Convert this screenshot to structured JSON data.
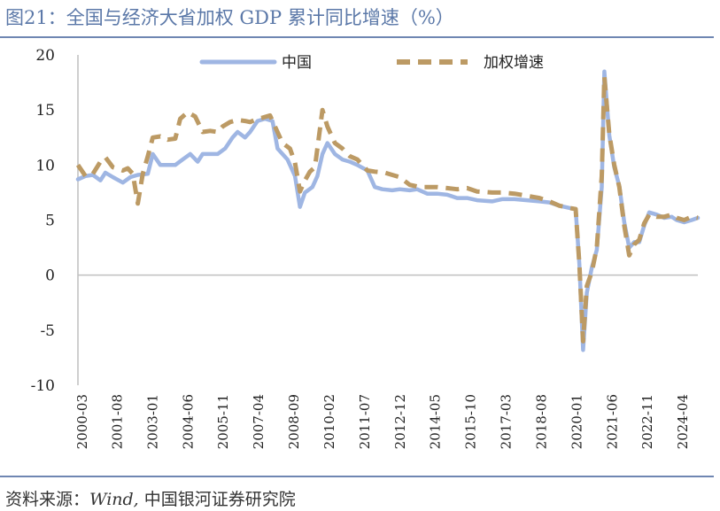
{
  "header": {
    "title": "图21：全国与经济大省加权 GDP 累计同比增速（%）"
  },
  "footer": {
    "source_prefix": "资料来源：",
    "source_wind": "Wind,",
    "source_org": "中国银河证券研究院"
  },
  "colors": {
    "china": "#9fb6e3",
    "weighted": "#bc9a64",
    "axis": "#bfbfbf",
    "title": "#5b78a8"
  },
  "chart_data": {
    "type": "line",
    "title": "全国与经济大省加权 GDP 累计同比增速（%）",
    "xlabel": "",
    "ylabel": "",
    "ylim": [
      -10,
      20
    ],
    "yticks": [
      20,
      15,
      10,
      5,
      0,
      -5,
      -10
    ],
    "ytick_labels": [
      "20",
      "15",
      "10",
      "5",
      "0",
      "-5",
      "-10"
    ],
    "x_tick_labels": [
      "2000-03",
      "2001-08",
      "2003-01",
      "2004-06",
      "2005-11",
      "2007-04",
      "2008-09",
      "2010-02",
      "2011-07",
      "2012-12",
      "2014-05",
      "2015-10",
      "2017-03",
      "2018-08",
      "2020-01",
      "2021-06",
      "2022-11",
      "2024-04"
    ],
    "x_tick_positions": [
      2000.17,
      2001.58,
      2003.0,
      2004.42,
      2005.83,
      2007.25,
      2008.67,
      2010.08,
      2011.5,
      2012.92,
      2014.33,
      2015.75,
      2017.17,
      2018.58,
      2020.0,
      2021.42,
      2022.83,
      2024.25
    ],
    "x_range": [
      2000.0,
      2024.85
    ],
    "legend": [
      "中国",
      "加权增速"
    ],
    "legend_position": "top",
    "series": [
      {
        "name": "中国",
        "style": "solid",
        "points": [
          [
            2000.0,
            8.7
          ],
          [
            2000.3,
            9.0
          ],
          [
            2000.6,
            9.1
          ],
          [
            2000.9,
            8.6
          ],
          [
            2001.1,
            9.3
          ],
          [
            2001.4,
            8.9
          ],
          [
            2001.8,
            8.4
          ],
          [
            2002.1,
            8.9
          ],
          [
            2002.4,
            9.1
          ],
          [
            2002.8,
            9.2
          ],
          [
            2003.0,
            11.0
          ],
          [
            2003.3,
            10.0
          ],
          [
            2003.6,
            10.0
          ],
          [
            2003.9,
            10.0
          ],
          [
            2004.2,
            10.5
          ],
          [
            2004.5,
            11.0
          ],
          [
            2004.8,
            10.3
          ],
          [
            2005.0,
            11.0
          ],
          [
            2005.3,
            11.0
          ],
          [
            2005.6,
            11.0
          ],
          [
            2005.9,
            11.5
          ],
          [
            2006.2,
            12.5
          ],
          [
            2006.4,
            13.0
          ],
          [
            2006.7,
            12.5
          ],
          [
            2006.9,
            13.0
          ],
          [
            2007.2,
            14.0
          ],
          [
            2007.5,
            14.2
          ],
          [
            2007.8,
            14.0
          ],
          [
            2008.0,
            11.5
          ],
          [
            2008.4,
            10.5
          ],
          [
            2008.7,
            9.0
          ],
          [
            2008.9,
            6.2
          ],
          [
            2009.1,
            7.5
          ],
          [
            2009.4,
            8.0
          ],
          [
            2009.6,
            9.0
          ],
          [
            2009.8,
            11.0
          ],
          [
            2010.0,
            12.0
          ],
          [
            2010.3,
            11.0
          ],
          [
            2010.6,
            10.5
          ],
          [
            2010.9,
            10.3
          ],
          [
            2011.2,
            10.0
          ],
          [
            2011.6,
            9.5
          ],
          [
            2011.9,
            8.0
          ],
          [
            2012.2,
            7.8
          ],
          [
            2012.6,
            7.7
          ],
          [
            2012.9,
            7.8
          ],
          [
            2013.3,
            7.7
          ],
          [
            2013.6,
            7.8
          ],
          [
            2014.0,
            7.4
          ],
          [
            2014.4,
            7.4
          ],
          [
            2014.8,
            7.3
          ],
          [
            2015.2,
            7.0
          ],
          [
            2015.6,
            7.0
          ],
          [
            2016.0,
            6.8
          ],
          [
            2016.6,
            6.7
          ],
          [
            2017.0,
            6.9
          ],
          [
            2017.5,
            6.9
          ],
          [
            2018.0,
            6.8
          ],
          [
            2018.5,
            6.7
          ],
          [
            2018.9,
            6.6
          ],
          [
            2019.3,
            6.3
          ],
          [
            2019.7,
            6.1
          ],
          [
            2019.95,
            6.0
          ],
          [
            2020.1,
            1.0
          ],
          [
            2020.25,
            -6.8
          ],
          [
            2020.4,
            -1.6
          ],
          [
            2020.6,
            0.7
          ],
          [
            2020.8,
            2.3
          ],
          [
            2021.0,
            8.0
          ],
          [
            2021.1,
            18.5
          ],
          [
            2021.3,
            12.7
          ],
          [
            2021.5,
            9.8
          ],
          [
            2021.7,
            8.1
          ],
          [
            2021.9,
            4.8
          ],
          [
            2022.1,
            2.5
          ],
          [
            2022.3,
            3.0
          ],
          [
            2022.5,
            3.0
          ],
          [
            2022.7,
            4.5
          ],
          [
            2022.9,
            5.7
          ],
          [
            2023.2,
            5.5
          ],
          [
            2023.5,
            5.2
          ],
          [
            2023.8,
            5.3
          ],
          [
            2024.0,
            5.0
          ],
          [
            2024.3,
            4.8
          ],
          [
            2024.6,
            5.0
          ],
          [
            2024.85,
            5.2
          ]
        ]
      },
      {
        "name": "加权增速",
        "style": "dashed",
        "points": [
          [
            2000.0,
            10.0
          ],
          [
            2000.3,
            9.0
          ],
          [
            2000.6,
            9.2
          ],
          [
            2000.9,
            10.3
          ],
          [
            2001.1,
            10.7
          ],
          [
            2001.4,
            9.8
          ],
          [
            2001.8,
            9.5
          ],
          [
            2002.0,
            9.7
          ],
          [
            2002.2,
            9.2
          ],
          [
            2002.4,
            6.5
          ],
          [
            2002.6,
            9.2
          ],
          [
            2002.8,
            10.8
          ],
          [
            2003.0,
            12.5
          ],
          [
            2003.3,
            12.6
          ],
          [
            2003.6,
            12.3
          ],
          [
            2003.9,
            12.4
          ],
          [
            2004.1,
            14.2
          ],
          [
            2004.4,
            14.8
          ],
          [
            2004.7,
            14.4
          ],
          [
            2005.0,
            13.0
          ],
          [
            2005.3,
            13.1
          ],
          [
            2005.6,
            13.0
          ],
          [
            2005.8,
            13.5
          ],
          [
            2006.1,
            13.9
          ],
          [
            2006.4,
            14.1
          ],
          [
            2006.7,
            14.0
          ],
          [
            2006.9,
            13.9
          ],
          [
            2007.2,
            14.2
          ],
          [
            2007.4,
            14.3
          ],
          [
            2007.7,
            14.5
          ],
          [
            2007.9,
            13.5
          ],
          [
            2008.2,
            12.0
          ],
          [
            2008.5,
            11.5
          ],
          [
            2008.7,
            10.2
          ],
          [
            2008.9,
            7.6
          ],
          [
            2009.1,
            8.6
          ],
          [
            2009.3,
            9.4
          ],
          [
            2009.5,
            9.8
          ],
          [
            2009.8,
            15.0
          ],
          [
            2010.0,
            13.5
          ],
          [
            2010.3,
            12.0
          ],
          [
            2010.6,
            11.5
          ],
          [
            2010.9,
            10.8
          ],
          [
            2011.2,
            10.5
          ],
          [
            2011.6,
            9.5
          ],
          [
            2011.9,
            9.4
          ],
          [
            2012.3,
            9.3
          ],
          [
            2012.6,
            9.1
          ],
          [
            2012.9,
            8.9
          ],
          [
            2013.3,
            8.2
          ],
          [
            2013.7,
            8.0
          ],
          [
            2014.0,
            8.0
          ],
          [
            2014.4,
            8.0
          ],
          [
            2014.8,
            7.9
          ],
          [
            2015.2,
            7.8
          ],
          [
            2015.6,
            7.9
          ],
          [
            2016.0,
            7.6
          ],
          [
            2016.6,
            7.5
          ],
          [
            2017.0,
            7.5
          ],
          [
            2017.5,
            7.4
          ],
          [
            2018.0,
            7.2
          ],
          [
            2018.5,
            7.0
          ],
          [
            2018.9,
            6.7
          ],
          [
            2019.3,
            6.3
          ],
          [
            2019.7,
            6.1
          ],
          [
            2019.95,
            6.0
          ],
          [
            2020.1,
            1.0
          ],
          [
            2020.25,
            -6.0
          ],
          [
            2020.4,
            -1.0
          ],
          [
            2020.6,
            0.3
          ],
          [
            2020.8,
            2.5
          ],
          [
            2021.0,
            9.0
          ],
          [
            2021.1,
            18.0
          ],
          [
            2021.3,
            12.8
          ],
          [
            2021.5,
            10.0
          ],
          [
            2021.7,
            8.0
          ],
          [
            2021.9,
            4.5
          ],
          [
            2022.1,
            1.8
          ],
          [
            2022.3,
            2.8
          ],
          [
            2022.5,
            3.2
          ],
          [
            2022.7,
            4.7
          ],
          [
            2022.9,
            5.5
          ],
          [
            2023.2,
            5.3
          ],
          [
            2023.5,
            5.3
          ],
          [
            2023.8,
            5.5
          ],
          [
            2024.0,
            5.2
          ],
          [
            2024.3,
            5.0
          ],
          [
            2024.6,
            5.3
          ],
          [
            2024.85,
            5.2
          ]
        ]
      }
    ]
  }
}
